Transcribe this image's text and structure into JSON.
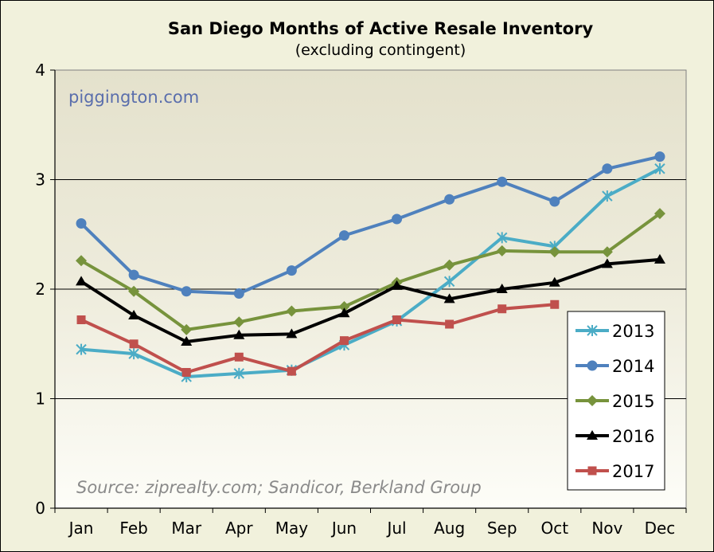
{
  "chart_data": {
    "type": "line",
    "title": "San Diego Months of Active Resale Inventory",
    "subtitle": "(excluding contingent)",
    "watermark": "piggington.com",
    "source_note": "Source: ziprealty.com; Sandicor, Berkland Group",
    "categories": [
      "Jan",
      "Feb",
      "Mar",
      "Apr",
      "May",
      "Jun",
      "Jul",
      "Aug",
      "Sep",
      "Oct",
      "Nov",
      "Dec"
    ],
    "ylim": [
      0,
      4
    ],
    "yticks": [
      "0",
      "1",
      "2",
      "3",
      "4"
    ],
    "grid": "horizontal",
    "legend_position": "bottom-right",
    "series": [
      {
        "name": "2013",
        "color": "#4bacc6",
        "marker": "asterisk",
        "values": [
          1.45,
          1.41,
          1.2,
          1.23,
          1.26,
          1.49,
          1.71,
          2.07,
          2.47,
          2.39,
          2.85,
          3.1
        ]
      },
      {
        "name": "2014",
        "color": "#4f81bd",
        "marker": "circle",
        "values": [
          2.6,
          2.13,
          1.98,
          1.96,
          2.17,
          2.49,
          2.64,
          2.82,
          2.98,
          2.8,
          3.1,
          3.21
        ]
      },
      {
        "name": "2015",
        "color": "#77933c",
        "marker": "diamond",
        "values": [
          2.26,
          1.98,
          1.63,
          1.7,
          1.8,
          1.84,
          2.06,
          2.22,
          2.35,
          2.34,
          2.34,
          2.69
        ]
      },
      {
        "name": "2016",
        "color": "#000000",
        "marker": "triangle",
        "values": [
          2.07,
          1.76,
          1.52,
          1.58,
          1.59,
          1.78,
          2.03,
          1.91,
          2.0,
          2.06,
          2.23,
          2.27
        ]
      },
      {
        "name": "2017",
        "color": "#c0504d",
        "marker": "square",
        "values": [
          1.72,
          1.5,
          1.24,
          1.38,
          1.25,
          1.53,
          1.72,
          1.68,
          1.82,
          1.86,
          null,
          null
        ]
      }
    ]
  }
}
